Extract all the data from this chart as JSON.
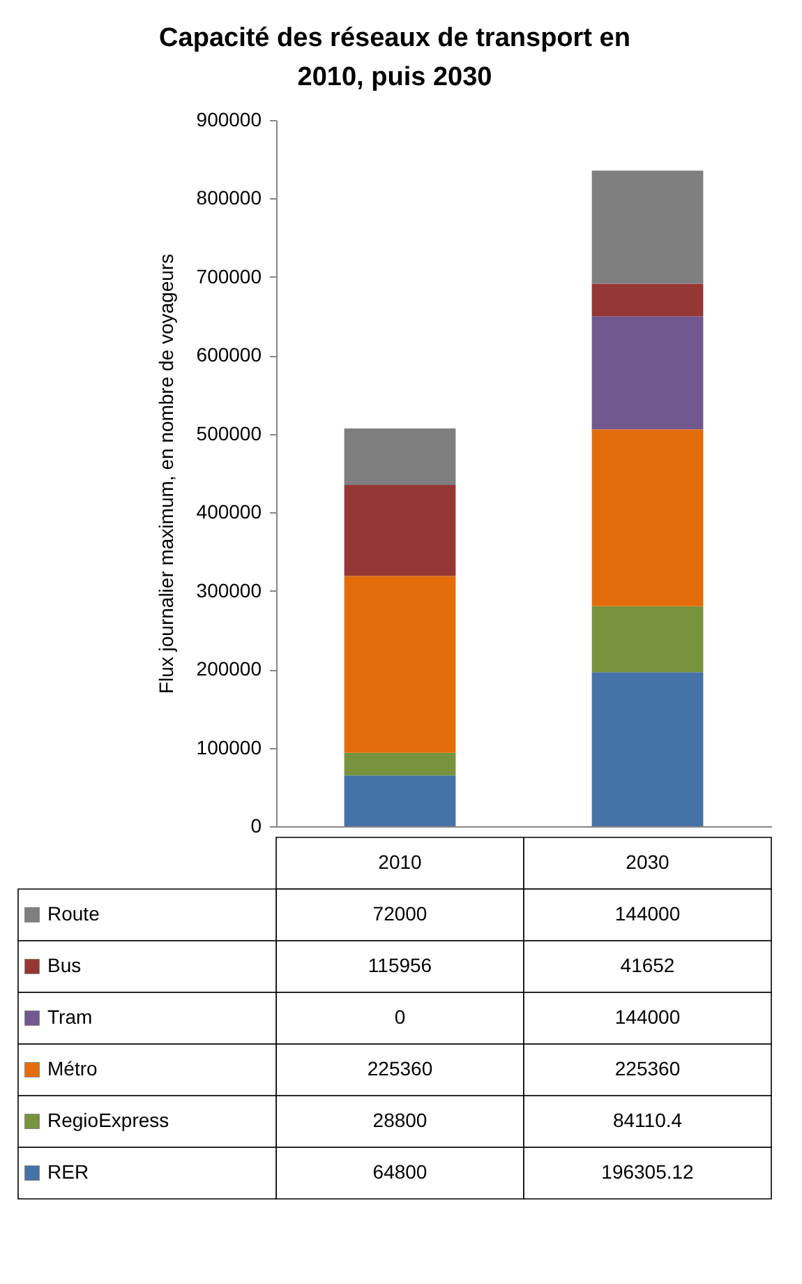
{
  "chart_data": {
    "type": "bar",
    "title": "Capacité des réseaux de transport en 2010, puis 2030",
    "ylabel": "Flux journalier maximum, en nombre de voyageurs",
    "categories": [
      "2010",
      "2030"
    ],
    "stacked": true,
    "series": [
      {
        "name": "RER",
        "color": "#4572a7",
        "values": [
          64800,
          196305.12
        ]
      },
      {
        "name": "RegioExpress",
        "color": "#77933c",
        "values": [
          28800,
          84110.4
        ]
      },
      {
        "name": "Métro",
        "color": "#e46c0a",
        "values": [
          225360,
          225360
        ]
      },
      {
        "name": "Tram",
        "color": "#71588f",
        "values": [
          0,
          144000
        ]
      },
      {
        "name": "Bus",
        "color": "#953735",
        "values": [
          115956,
          41652
        ]
      },
      {
        "name": "Route",
        "color": "#7f7f7f",
        "values": [
          72000,
          144000
        ]
      }
    ],
    "ylim": [
      0,
      900000
    ],
    "yticks": [
      0,
      100000,
      200000,
      300000,
      400000,
      500000,
      600000,
      700000,
      800000,
      900000
    ],
    "grid": false,
    "legend": "bottom",
    "data_labels": true
  }
}
